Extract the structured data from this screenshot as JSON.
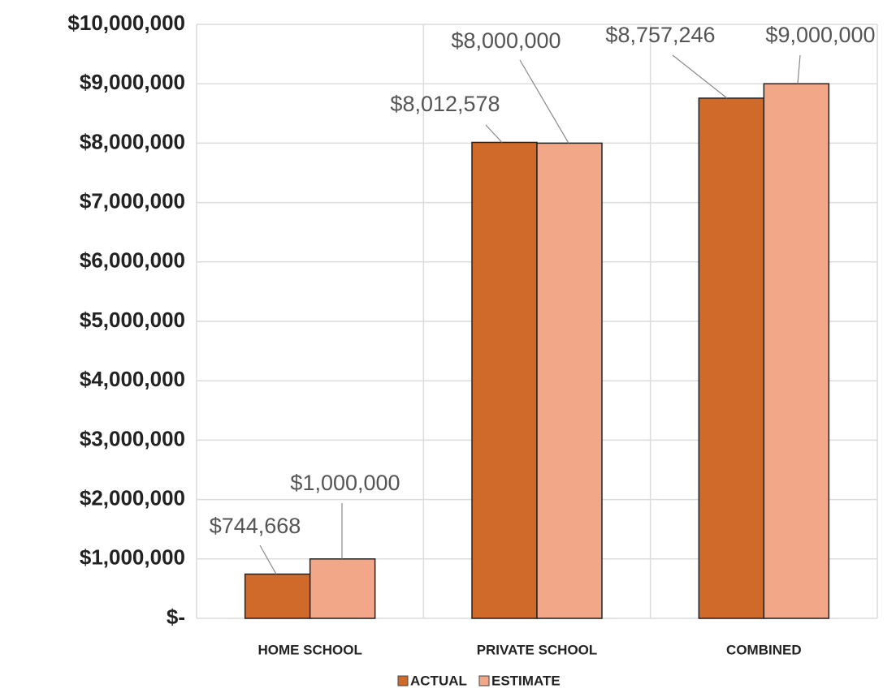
{
  "chart_data": {
    "type": "bar",
    "categories": [
      "HOME SCHOOL",
      "PRIVATE SCHOOL",
      "COMBINED"
    ],
    "series": [
      {
        "name": "ACTUAL",
        "color": "#d06a2b",
        "values": [
          744668,
          8012578,
          8757246
        ],
        "value_labels": [
          "$744,668",
          "$8,012,578",
          "$8,757,246"
        ]
      },
      {
        "name": "ESTIMATE",
        "color": "#f2a789",
        "values": [
          1000000,
          8000000,
          9000000
        ],
        "value_labels": [
          "$1,000,000",
          "$8,000,000",
          "$9,000,000"
        ]
      }
    ],
    "ylim": [
      0,
      10000000
    ],
    "yticks": [
      {
        "value": 0,
        "label": "$-"
      },
      {
        "value": 1000000,
        "label": "$1,000,000"
      },
      {
        "value": 2000000,
        "label": "$2,000,000"
      },
      {
        "value": 3000000,
        "label": "$3,000,000"
      },
      {
        "value": 4000000,
        "label": "$4,000,000"
      },
      {
        "value": 5000000,
        "label": "$5,000,000"
      },
      {
        "value": 6000000,
        "label": "$6,000,000"
      },
      {
        "value": 7000000,
        "label": "$7,000,000"
      },
      {
        "value": 8000000,
        "label": "$8,000,000"
      },
      {
        "value": 9000000,
        "label": "$9,000,000"
      },
      {
        "value": 10000000,
        "label": "$10,000,000"
      }
    ],
    "grid": true,
    "legend": "bottom"
  }
}
